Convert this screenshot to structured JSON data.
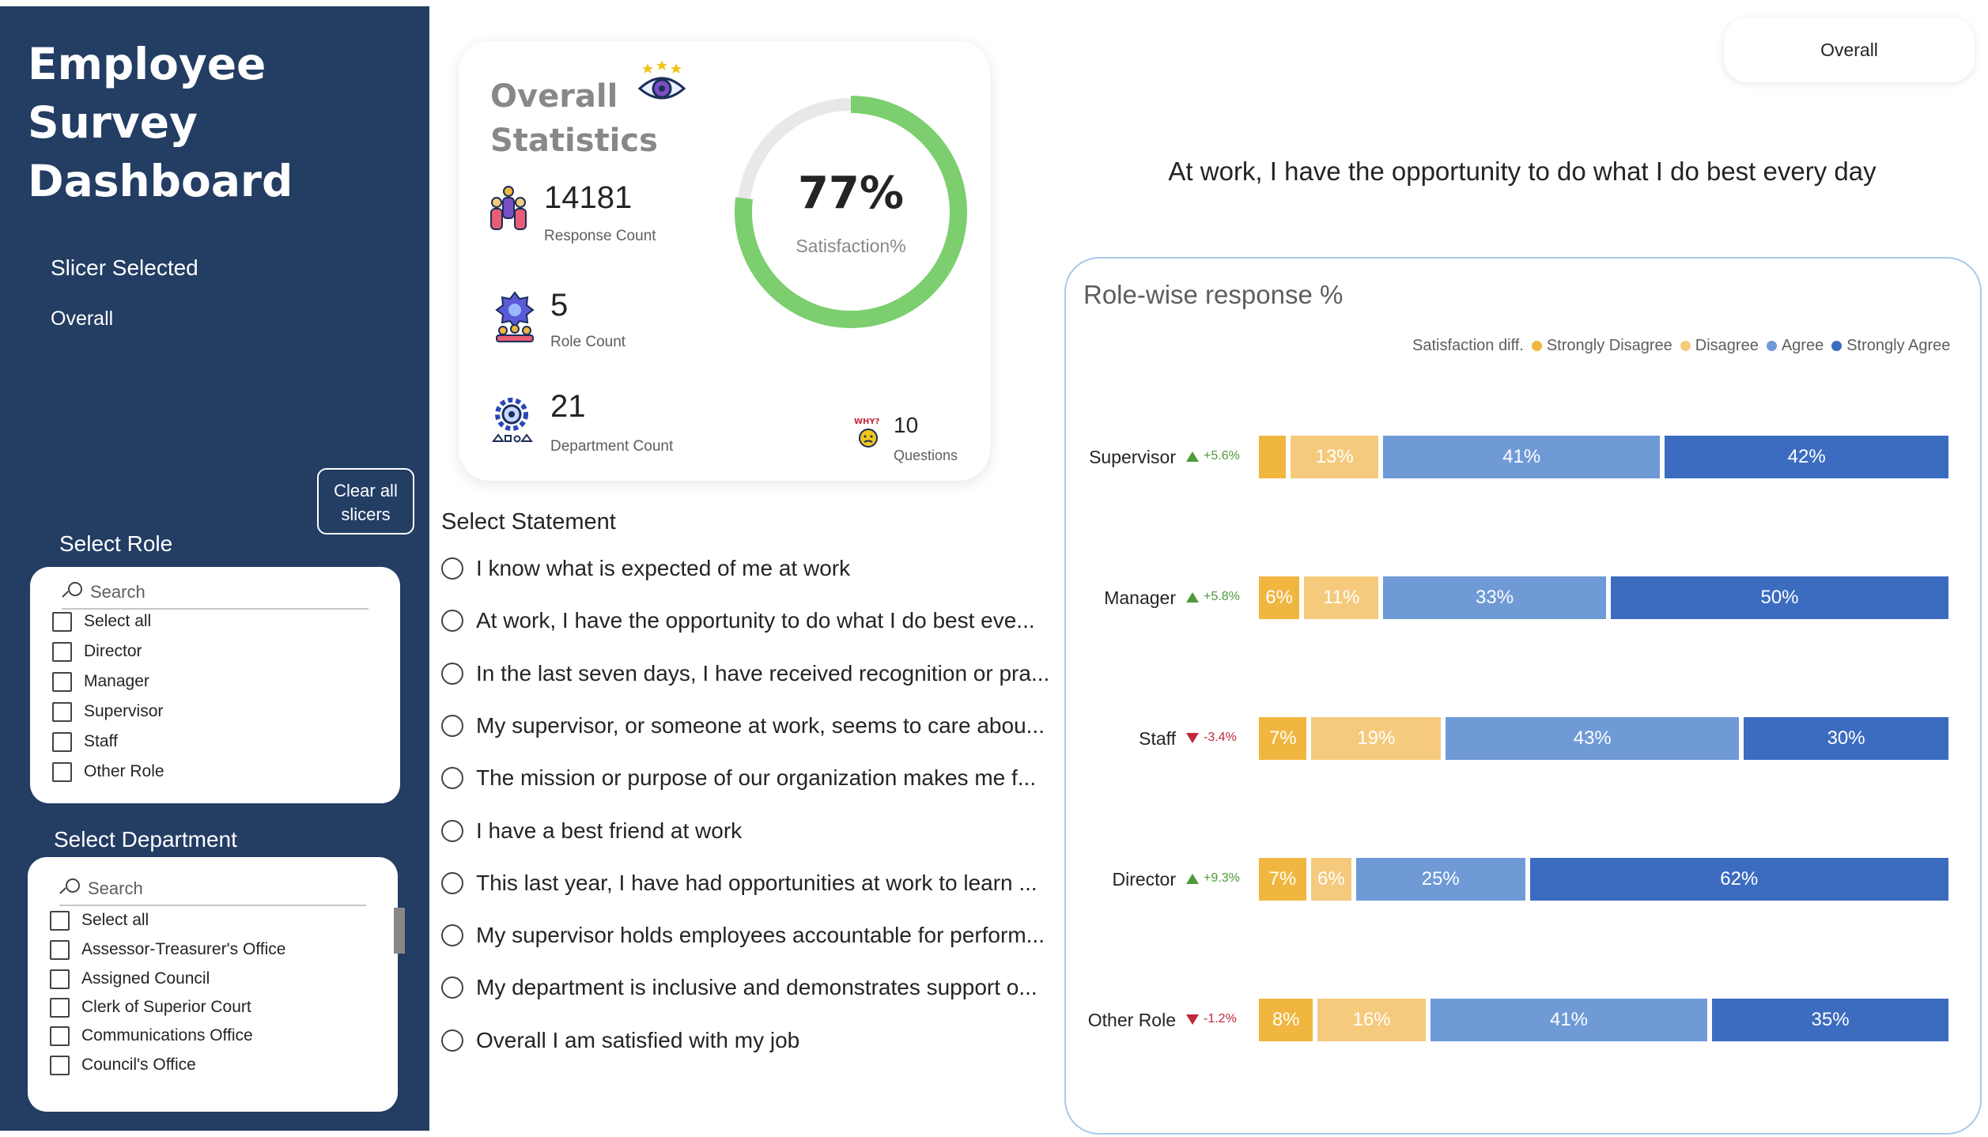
{
  "sidebar": {
    "title": "Employee Survey Dashboard",
    "slicer_label": "Slicer Selected",
    "slicer_value": "Overall",
    "clear_button": "Clear all slicers",
    "role": {
      "title": "Select Role",
      "search_placeholder": "Search",
      "options": [
        "Select all",
        "Director",
        "Manager",
        "Supervisor",
        "Staff",
        "Other Role"
      ]
    },
    "department": {
      "title": "Select Department",
      "search_placeholder": "Search",
      "options": [
        "Select all",
        "Assessor-Treasurer's Office",
        "Assigned Council",
        "Clerk of Superior Court",
        "Communications Office",
        "Council's Office"
      ]
    }
  },
  "stats": {
    "title": "Overall Statistics",
    "response_count": "14181",
    "response_label": "Response Count",
    "role_count": "5",
    "role_label": "Role Count",
    "department_count": "21",
    "department_label": "Department Count",
    "questions_count": "10",
    "questions_label": "Questions",
    "satisfaction_value": "77%",
    "satisfaction_fraction": 0.77,
    "satisfaction_label": "Satisfaction%"
  },
  "statements": {
    "title": "Select Statement",
    "items": [
      "I know what is expected of me at work",
      "At work, I have the opportunity to do what I do best eve...",
      "In the last seven days, I have received recognition or pra...",
      "My supervisor, or someone at work, seems to care abou...",
      "The mission or purpose of our organization makes me f...",
      "I have a best friend at work",
      "This last year, I have had opportunities at work to learn ...",
      "My supervisor holds employees accountable for perform...",
      "My department is inclusive and demonstrates support o...",
      "Overall I am satisfied with my job"
    ]
  },
  "top_filter": {
    "label": "Overall"
  },
  "question_title": "At work, I have the opportunity to do what I do best every day",
  "colors": {
    "sidebar": "#233d63",
    "strongly_disagree": "#f0b63f",
    "disagree": "#f5ca7d",
    "agree": "#6f9ad6",
    "strongly_agree": "#3c6cc0",
    "donut": "#7cce6e",
    "up": "#4e9a3a",
    "down": "#c0283b"
  },
  "chart_data": {
    "type": "bar",
    "title": "Role-wise response %",
    "stacked": true,
    "orientation": "horizontal",
    "legend": [
      "Satisfaction diff.",
      "Strongly Disagree",
      "Disagree",
      "Agree",
      "Strongly Agree"
    ],
    "legend_position": "top-right",
    "categories": [
      "Supervisor",
      "Manager",
      "Staff",
      "Director",
      "Other Role"
    ],
    "satisfaction_diff": [
      {
        "text": "+5.6%",
        "direction": "up"
      },
      {
        "text": "+5.8%",
        "direction": "up"
      },
      {
        "text": "-3.4%",
        "direction": "down"
      },
      {
        "text": "+9.3%",
        "direction": "up"
      },
      {
        "text": "-1.2%",
        "direction": "down"
      }
    ],
    "series": [
      {
        "name": "Strongly Disagree",
        "values": [
          4,
          6,
          7,
          7,
          8
        ],
        "labels": [
          "",
          "6%",
          "7%",
          "7%",
          "8%"
        ]
      },
      {
        "name": "Disagree",
        "values": [
          13,
          11,
          19,
          6,
          16
        ],
        "labels": [
          "13%",
          "11%",
          "19%",
          "6%",
          "16%"
        ]
      },
      {
        "name": "Agree",
        "values": [
          41,
          33,
          43,
          25,
          41
        ],
        "labels": [
          "41%",
          "33%",
          "43%",
          "25%",
          "41%"
        ]
      },
      {
        "name": "Strongly Agree",
        "values": [
          42,
          50,
          30,
          62,
          35
        ],
        "labels": [
          "42%",
          "50%",
          "30%",
          "62%",
          "35%"
        ]
      }
    ]
  }
}
